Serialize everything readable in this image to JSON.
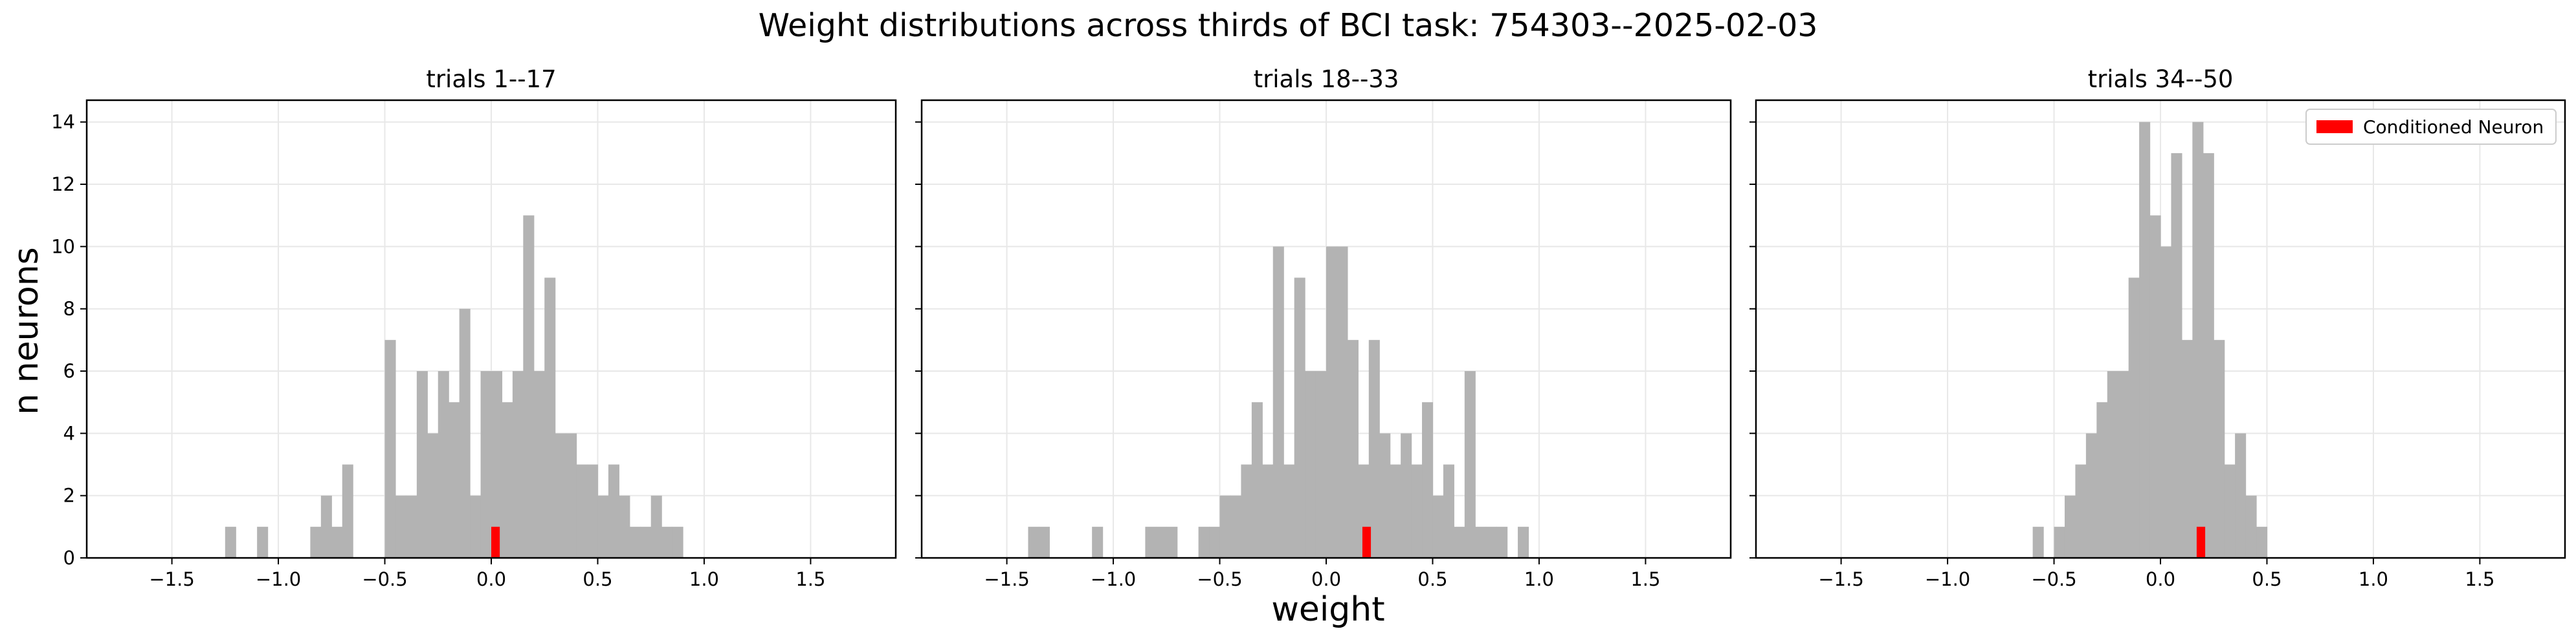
{
  "figure": {
    "suptitle": "Weight distributions across thirds of BCI task: 754303--2025-02-03",
    "ylabel": "n neurons",
    "xlabel": "weight"
  },
  "colors": {
    "hist": "#b3b3b3",
    "conditioned": "#ff0000",
    "grid": "#e8e8e8",
    "frame": "#000000"
  },
  "x_ticks": [
    "−1.5",
    "−1.0",
    "−0.5",
    "0.0",
    "0.5",
    "1.0",
    "1.5"
  ],
  "y_ticks": [
    "0",
    "2",
    "4",
    "6",
    "8",
    "10",
    "12",
    "14"
  ],
  "chart_data": [
    {
      "type": "bar",
      "title": "trials 1--17",
      "xlim": [
        -1.9,
        1.9
      ],
      "ylim": [
        0,
        14.7
      ],
      "grid": true,
      "bin_width": 0.05,
      "bins": [
        [
          -1.25,
          1
        ],
        [
          -1.1,
          1
        ],
        [
          -0.85,
          1
        ],
        [
          -0.8,
          2
        ],
        [
          -0.75,
          1
        ],
        [
          -0.7,
          3
        ],
        [
          -0.5,
          7
        ],
        [
          -0.45,
          2
        ],
        [
          -0.4,
          2
        ],
        [
          -0.35,
          6
        ],
        [
          -0.3,
          4
        ],
        [
          -0.25,
          6
        ],
        [
          -0.2,
          5
        ],
        [
          -0.15,
          8
        ],
        [
          -0.1,
          2
        ],
        [
          -0.05,
          6
        ],
        [
          0.0,
          6
        ],
        [
          0.05,
          5
        ],
        [
          0.1,
          6
        ],
        [
          0.15,
          11
        ],
        [
          0.2,
          6
        ],
        [
          0.25,
          9
        ],
        [
          0.3,
          4
        ],
        [
          0.35,
          4
        ],
        [
          0.4,
          3
        ],
        [
          0.45,
          3
        ],
        [
          0.5,
          2
        ],
        [
          0.55,
          3
        ],
        [
          0.6,
          2
        ],
        [
          0.65,
          1
        ],
        [
          0.7,
          1
        ],
        [
          0.75,
          2
        ],
        [
          0.8,
          1
        ],
        [
          0.85,
          1
        ]
      ],
      "conditioned": {
        "x": 0.0,
        "value": 1
      }
    },
    {
      "type": "bar",
      "title": "trials 18--33",
      "xlim": [
        -1.9,
        1.9
      ],
      "ylim": [
        0,
        14.7
      ],
      "grid": true,
      "bin_width": 0.05,
      "bins": [
        [
          -1.4,
          1
        ],
        [
          -1.35,
          1
        ],
        [
          -1.1,
          1
        ],
        [
          -0.85,
          1
        ],
        [
          -0.8,
          1
        ],
        [
          -0.75,
          1
        ],
        [
          -0.6,
          1
        ],
        [
          -0.55,
          1
        ],
        [
          -0.5,
          2
        ],
        [
          -0.45,
          2
        ],
        [
          -0.4,
          3
        ],
        [
          -0.35,
          5
        ],
        [
          -0.3,
          3
        ],
        [
          -0.25,
          10
        ],
        [
          -0.2,
          3
        ],
        [
          -0.15,
          9
        ],
        [
          -0.1,
          6
        ],
        [
          -0.05,
          6
        ],
        [
          0.0,
          10
        ],
        [
          0.05,
          10
        ],
        [
          0.1,
          7
        ],
        [
          0.15,
          3
        ],
        [
          0.2,
          7
        ],
        [
          0.25,
          4
        ],
        [
          0.3,
          3
        ],
        [
          0.35,
          4
        ],
        [
          0.4,
          3
        ],
        [
          0.45,
          5
        ],
        [
          0.5,
          2
        ],
        [
          0.55,
          3
        ],
        [
          0.6,
          1
        ],
        [
          0.65,
          6
        ],
        [
          0.7,
          1
        ],
        [
          0.75,
          1
        ],
        [
          0.8,
          1
        ],
        [
          0.9,
          1
        ]
      ],
      "conditioned": {
        "x": 0.17,
        "value": 1
      }
    },
    {
      "type": "bar",
      "title": "trials 34--50",
      "xlim": [
        -1.9,
        1.9
      ],
      "ylim": [
        0,
        14.7
      ],
      "grid": true,
      "bin_width": 0.05,
      "legend": {
        "label": "Conditioned Neuron",
        "placement": "top-right"
      },
      "bins": [
        [
          -0.6,
          1
        ],
        [
          -0.5,
          1
        ],
        [
          -0.45,
          2
        ],
        [
          -0.4,
          3
        ],
        [
          -0.35,
          4
        ],
        [
          -0.3,
          5
        ],
        [
          -0.25,
          6
        ],
        [
          -0.2,
          6
        ],
        [
          -0.15,
          9
        ],
        [
          -0.1,
          14
        ],
        [
          -0.05,
          11
        ],
        [
          0.0,
          10
        ],
        [
          0.05,
          13
        ],
        [
          0.1,
          7
        ],
        [
          0.15,
          14
        ],
        [
          0.2,
          13
        ],
        [
          0.25,
          7
        ],
        [
          0.3,
          3
        ],
        [
          0.35,
          4
        ],
        [
          0.4,
          2
        ],
        [
          0.45,
          1
        ]
      ],
      "conditioned": {
        "x": 0.17,
        "value": 1
      }
    }
  ]
}
